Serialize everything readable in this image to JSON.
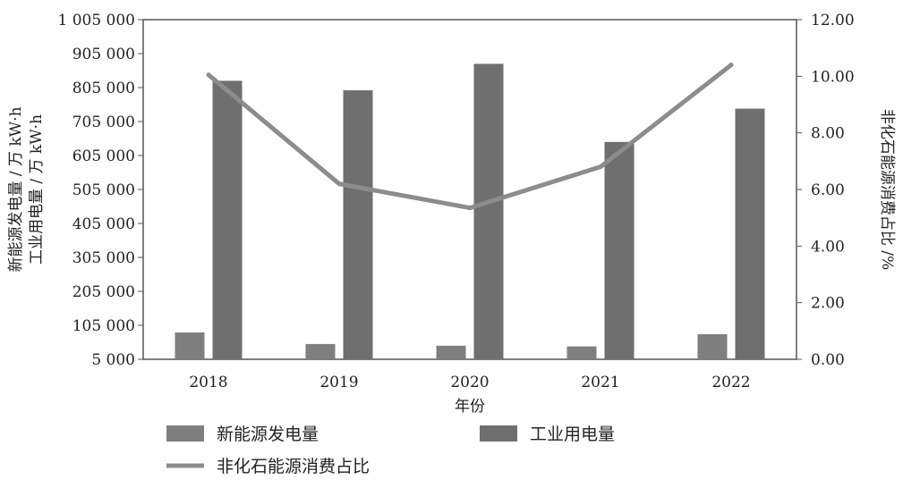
{
  "chart_data": {
    "type": "bar",
    "categories": [
      "2018",
      "2019",
      "2020",
      "2021",
      "2022"
    ],
    "series": [
      {
        "name": "新能源发电量",
        "kind": "bar",
        "axis": "left",
        "color": "#7f7f7f",
        "values": [
          84000,
          50000,
          45000,
          43000,
          79000
        ]
      },
      {
        "name": "工业用电量",
        "kind": "bar",
        "axis": "left",
        "color": "#6f6f6f",
        "values": [
          825000,
          797000,
          875000,
          645000,
          743000
        ]
      },
      {
        "name": "非化石能源消费占比",
        "kind": "line",
        "axis": "right",
        "color": "#8c8c8c",
        "values": [
          10.05,
          6.2,
          5.35,
          6.8,
          10.4
        ]
      }
    ],
    "xlabel": "年份",
    "ylabel_left": [
      "新能源发电量 / 万 kW·h",
      "工业用电量 / 万 kW·h"
    ],
    "ylabel_right": "非化石能源消费占比 /%",
    "ylim_left": [
      5000,
      1005000
    ],
    "ylim_right": [
      0,
      12
    ],
    "yticks_left": [
      "1 005 000",
      "905 000",
      "805 000",
      "705 000",
      "605 000",
      "505 000",
      "405 000",
      "305 000",
      "205 000",
      "105 000",
      "5 000"
    ],
    "yticks_right": [
      "12.00",
      "10.00",
      "8.00",
      "6.00",
      "4.00",
      "2.00",
      "0.00"
    ],
    "grid": false,
    "legend_position": "bottom"
  }
}
